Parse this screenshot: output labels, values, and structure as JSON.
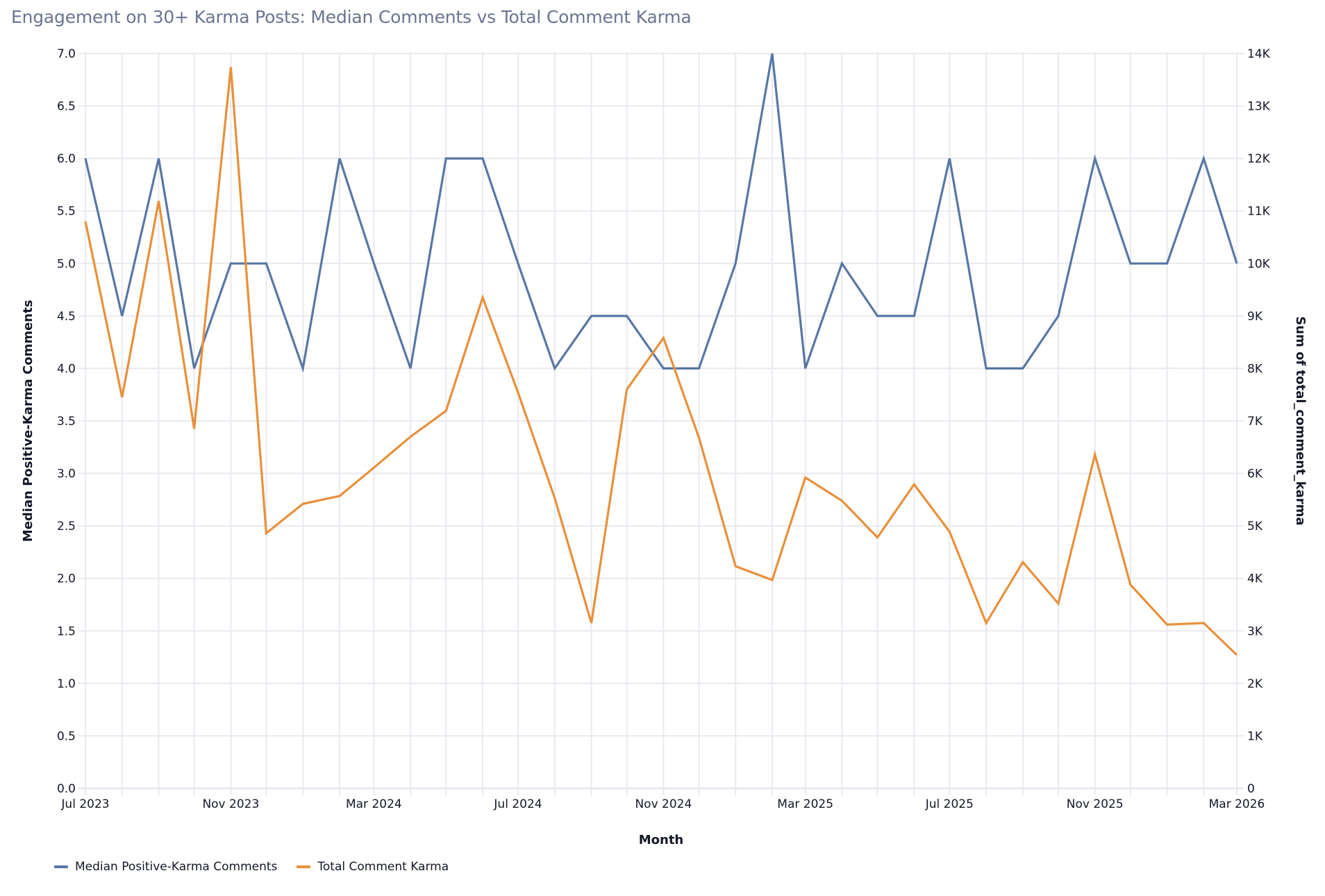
{
  "title": "Engagement on 30+ Karma Posts: Median Comments vs Total Comment Karma",
  "chart_data": {
    "type": "line",
    "title": "Engagement on 30+ Karma Posts: Median Comments vs Total Comment Karma",
    "xlabel": "Month",
    "ylabel_left": "Median Positive-Karma Comments",
    "ylabel_right": "Sum of total_comment_karma",
    "x": [
      "2023-07",
      "2023-08",
      "2023-09",
      "2023-10",
      "2023-11",
      "2023-12",
      "2024-01",
      "2024-02",
      "2024-03",
      "2024-04",
      "2024-05",
      "2024-06",
      "2024-07",
      "2024-08",
      "2024-09",
      "2024-10",
      "2024-11",
      "2024-12",
      "2025-01",
      "2025-02",
      "2025-03",
      "2025-04",
      "2025-05",
      "2025-06",
      "2025-07",
      "2025-08",
      "2025-09",
      "2025-10",
      "2025-11",
      "2025-12",
      "2026-01",
      "2026-02",
      "2026-03"
    ],
    "x_tick_labels": [
      "Jul 2023",
      "Nov 2023",
      "Mar 2024",
      "Jul 2024",
      "Nov 2024",
      "Mar 2025",
      "Jul 2025",
      "Nov 2025",
      "Mar 2026"
    ],
    "x_tick_label_months": [
      0,
      4,
      8,
      12,
      16,
      20,
      24,
      28,
      32
    ],
    "ylim_left": [
      0,
      7
    ],
    "y_ticks_left": [
      "0.0",
      "0.5",
      "1.0",
      "1.5",
      "2.0",
      "2.5",
      "3.0",
      "3.5",
      "4.0",
      "4.5",
      "5.0",
      "5.5",
      "6.0",
      "6.5",
      "7.0"
    ],
    "ylim_right": [
      0,
      14000
    ],
    "y_ticks_right": [
      "0",
      "1K",
      "2K",
      "3K",
      "4K",
      "5K",
      "6K",
      "7K",
      "8K",
      "9K",
      "10K",
      "11K",
      "12K",
      "13K",
      "14K"
    ],
    "grid": true,
    "legend_position": "bottom-left",
    "series": [
      {
        "name": "Median Positive-Karma Comments",
        "axis": "left",
        "color": "#5877a4",
        "values": [
          6.0,
          4.5,
          6.0,
          4.0,
          5.0,
          5.0,
          4.0,
          6.0,
          5.0,
          4.0,
          6.0,
          6.0,
          5.0,
          4.0,
          4.5,
          4.5,
          4.0,
          4.0,
          5.0,
          7.0,
          4.0,
          5.0,
          4.5,
          4.5,
          6.0,
          4.0,
          4.0,
          4.5,
          6.0,
          5.0,
          5.0,
          6.0,
          5.0
        ]
      },
      {
        "name": "Total Comment Karma",
        "axis": "right",
        "color": "#e8903a",
        "values": [
          10800,
          7450,
          11190,
          6850,
          13740,
          4860,
          5420,
          5570,
          6110,
          6700,
          7190,
          9350,
          7540,
          5530,
          3150,
          7600,
          8580,
          6680,
          4230,
          3970,
          5920,
          5480,
          4780,
          5790,
          4890,
          3150,
          4310,
          3520,
          6360,
          3880,
          3120,
          3150,
          2540
        ]
      }
    ]
  }
}
